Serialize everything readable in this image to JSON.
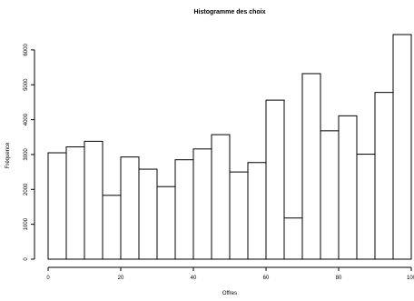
{
  "chart_data": {
    "type": "bar",
    "title": "Histogramme des choix",
    "xlabel": "Offres",
    "ylabel": "Fréquence",
    "bins": [
      {
        "x0": 0,
        "x1": 5,
        "value": 3050
      },
      {
        "x0": 5,
        "x1": 10,
        "value": 3220
      },
      {
        "x0": 10,
        "x1": 15,
        "value": 3380
      },
      {
        "x0": 15,
        "x1": 20,
        "value": 1830
      },
      {
        "x0": 20,
        "x1": 25,
        "value": 2930
      },
      {
        "x0": 25,
        "x1": 30,
        "value": 2580
      },
      {
        "x0": 30,
        "x1": 35,
        "value": 2080
      },
      {
        "x0": 35,
        "x1": 40,
        "value": 2850
      },
      {
        "x0": 40,
        "x1": 45,
        "value": 3160
      },
      {
        "x0": 45,
        "x1": 50,
        "value": 3570
      },
      {
        "x0": 50,
        "x1": 55,
        "value": 2500
      },
      {
        "x0": 55,
        "x1": 60,
        "value": 2770
      },
      {
        "x0": 60,
        "x1": 65,
        "value": 4560
      },
      {
        "x0": 65,
        "x1": 70,
        "value": 1180
      },
      {
        "x0": 70,
        "x1": 75,
        "value": 5320
      },
      {
        "x0": 75,
        "x1": 80,
        "value": 3680
      },
      {
        "x0": 80,
        "x1": 85,
        "value": 4110
      },
      {
        "x0": 85,
        "x1": 90,
        "value": 3010
      },
      {
        "x0": 90,
        "x1": 95,
        "value": 4780
      },
      {
        "x0": 95,
        "x1": 100,
        "value": 6440
      }
    ],
    "xlim": [
      0,
      100
    ],
    "ylim": [
      0,
      6440
    ],
    "x_ticks": [
      0,
      20,
      40,
      60,
      80,
      100
    ],
    "x_tick_labels": [
      "0",
      "20",
      "40",
      "60",
      "80",
      "100"
    ],
    "y_ticks": [
      0,
      1000,
      2000,
      3000,
      4000,
      5000,
      6000
    ],
    "y_tick_labels": [
      "0",
      "1000",
      "2000",
      "3000",
      "4000",
      "5000",
      "6000"
    ],
    "grid": false
  }
}
